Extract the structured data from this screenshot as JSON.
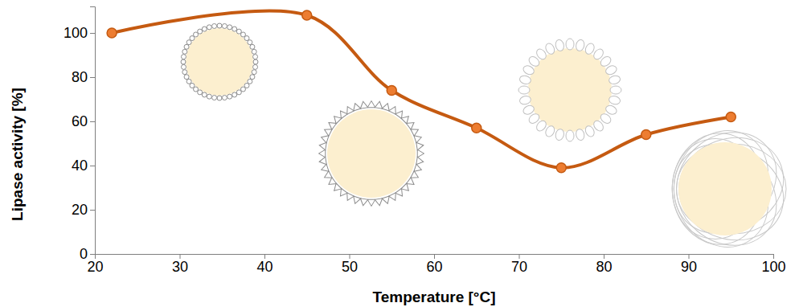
{
  "chart_data": {
    "type": "line",
    "x_label": "Temperature [°C]",
    "y_label": "Lipase activity [%]",
    "x": [
      22,
      45,
      55,
      65,
      75,
      85,
      95
    ],
    "values": [
      100,
      108,
      74,
      57,
      39,
      54,
      62
    ],
    "color": "#c55a11",
    "marker": "circle",
    "xlim": [
      20,
      100
    ],
    "xticks": [
      20,
      30,
      40,
      50,
      60,
      70,
      80,
      90,
      100
    ],
    "ylim": [
      0,
      112
    ],
    "yticks": [
      0,
      20,
      40,
      60,
      80,
      100
    ],
    "grid": false
  }
}
